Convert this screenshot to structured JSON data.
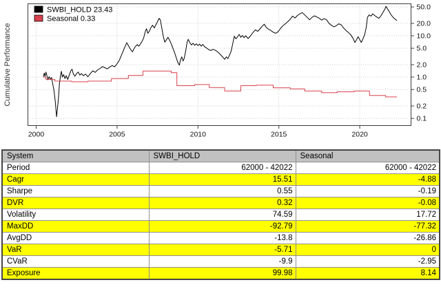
{
  "chart_data": {
    "type": "line",
    "title": "",
    "ylabel": "Cumulative Performance",
    "y_scale": "log",
    "grid": "dotted",
    "legend_position": "topleft",
    "xlim": [
      1999.49,
      2023.17
    ],
    "ylim": [
      0.067,
      59.6
    ],
    "x_ticks": [
      2000,
      2005,
      2010,
      2015,
      2020
    ],
    "x_tick_labels": [
      "2000",
      "2005",
      "2010",
      "2015",
      "2020"
    ],
    "y_ticks": [
      50,
      20,
      10,
      5,
      2,
      1,
      0.5,
      0.2,
      0.1
    ],
    "y_tick_labels": [
      "50.0",
      "20.0",
      "10.0",
      "5.0",
      "2.0",
      "1.0",
      "0.5",
      "0.2",
      "0.1"
    ],
    "series": [
      {
        "name": "SWBI_HOLD",
        "final_value": "23.43",
        "legend_label": "SWBI_HOLD 23.43",
        "color": "#000000",
        "points": [
          [
            2000.45,
            1.0
          ],
          [
            2000.5,
            1.25
          ],
          [
            2000.55,
            1.05
          ],
          [
            2000.6,
            1.32
          ],
          [
            2000.66,
            1.1
          ],
          [
            2000.72,
            0.86
          ],
          [
            2000.8,
            1.02
          ],
          [
            2000.88,
            0.88
          ],
          [
            2000.95,
            0.98
          ],
          [
            2001.02,
            0.7
          ],
          [
            2001.1,
            0.48
          ],
          [
            2001.18,
            0.26
          ],
          [
            2001.26,
            0.11
          ],
          [
            2001.32,
            0.18
          ],
          [
            2001.38,
            0.32
          ],
          [
            2001.44,
            0.7
          ],
          [
            2001.5,
            1.05
          ],
          [
            2001.56,
            1.38
          ],
          [
            2001.62,
            1.0
          ],
          [
            2001.7,
            1.15
          ],
          [
            2001.78,
            0.92
          ],
          [
            2001.86,
            1.08
          ],
          [
            2001.95,
            0.88
          ],
          [
            2002.05,
            1.12
          ],
          [
            2002.15,
            1.45
          ],
          [
            2002.22,
            1.55
          ],
          [
            2002.3,
            1.18
          ],
          [
            2002.4,
            1.05
          ],
          [
            2002.5,
            1.22
          ],
          [
            2002.6,
            1.32
          ],
          [
            2002.7,
            1.12
          ],
          [
            2002.8,
            1.22
          ],
          [
            2002.92,
            1.08
          ],
          [
            2003.05,
            1.18
          ],
          [
            2003.2,
            1.02
          ],
          [
            2003.35,
            1.22
          ],
          [
            2003.5,
            1.42
          ],
          [
            2003.65,
            1.3
          ],
          [
            2003.8,
            1.5
          ],
          [
            2003.95,
            1.62
          ],
          [
            2004.1,
            1.8
          ],
          [
            2004.25,
            1.68
          ],
          [
            2004.4,
            1.58
          ],
          [
            2004.55,
            1.76
          ],
          [
            2004.7,
            1.9
          ],
          [
            2004.85,
            1.78
          ],
          [
            2005.0,
            2.1
          ],
          [
            2005.15,
            2.6
          ],
          [
            2005.3,
            3.6
          ],
          [
            2005.45,
            5.0
          ],
          [
            2005.6,
            6.8
          ],
          [
            2005.72,
            5.6
          ],
          [
            2005.85,
            4.6
          ],
          [
            2005.95,
            4.1
          ],
          [
            2006.05,
            4.9
          ],
          [
            2006.15,
            5.6
          ],
          [
            2006.25,
            6.1
          ],
          [
            2006.35,
            5.6
          ],
          [
            2006.45,
            6.4
          ],
          [
            2006.55,
            7.4
          ],
          [
            2006.65,
            9.0
          ],
          [
            2006.75,
            13.0
          ],
          [
            2006.82,
            14.8
          ],
          [
            2006.9,
            11.5
          ],
          [
            2007.0,
            13.0
          ],
          [
            2007.1,
            16.0
          ],
          [
            2007.2,
            18.0
          ],
          [
            2007.3,
            15.5
          ],
          [
            2007.4,
            18.5
          ],
          [
            2007.5,
            22.0
          ],
          [
            2007.6,
            26.5
          ],
          [
            2007.68,
            24.0
          ],
          [
            2007.75,
            17.0
          ],
          [
            2007.85,
            10.0
          ],
          [
            2007.95,
            7.0
          ],
          [
            2008.05,
            8.0
          ],
          [
            2008.15,
            9.2
          ],
          [
            2008.25,
            7.8
          ],
          [
            2008.35,
            6.4
          ],
          [
            2008.45,
            5.0
          ],
          [
            2008.55,
            4.0
          ],
          [
            2008.65,
            3.0
          ],
          [
            2008.75,
            2.3
          ],
          [
            2008.85,
            1.95
          ],
          [
            2008.92,
            2.6
          ],
          [
            2009.0,
            3.1
          ],
          [
            2009.08,
            2.45
          ],
          [
            2009.16,
            2.9
          ],
          [
            2009.25,
            4.5
          ],
          [
            2009.33,
            7.0
          ],
          [
            2009.4,
            8.2
          ],
          [
            2009.5,
            6.8
          ],
          [
            2009.6,
            6.0
          ],
          [
            2009.7,
            6.6
          ],
          [
            2009.8,
            5.9
          ],
          [
            2009.9,
            6.4
          ],
          [
            2010.0,
            5.8
          ],
          [
            2010.1,
            6.3
          ],
          [
            2010.2,
            5.6
          ],
          [
            2010.3,
            6.2
          ],
          [
            2010.42,
            5.4
          ],
          [
            2010.55,
            5.0
          ],
          [
            2010.68,
            4.6
          ],
          [
            2010.8,
            4.4
          ],
          [
            2010.92,
            4.7
          ],
          [
            2011.05,
            4.5
          ],
          [
            2011.18,
            4.2
          ],
          [
            2011.3,
            3.8
          ],
          [
            2011.42,
            3.4
          ],
          [
            2011.55,
            3.0
          ],
          [
            2011.65,
            2.7
          ],
          [
            2011.75,
            3.1
          ],
          [
            2011.85,
            2.8
          ],
          [
            2011.95,
            3.4
          ],
          [
            2012.05,
            4.2
          ],
          [
            2012.15,
            6.5
          ],
          [
            2012.25,
            9.8
          ],
          [
            2012.35,
            8.5
          ],
          [
            2012.45,
            9.5
          ],
          [
            2012.55,
            10.8
          ],
          [
            2012.65,
            9.2
          ],
          [
            2012.75,
            10.2
          ],
          [
            2012.85,
            9.0
          ],
          [
            2012.95,
            10.0
          ],
          [
            2013.1,
            8.6
          ],
          [
            2013.25,
            10.0
          ],
          [
            2013.4,
            12.0
          ],
          [
            2013.55,
            14.0
          ],
          [
            2013.7,
            12.8
          ],
          [
            2013.85,
            15.0
          ],
          [
            2014.0,
            17.5
          ],
          [
            2014.1,
            19.0
          ],
          [
            2014.22,
            16.0
          ],
          [
            2014.35,
            14.5
          ],
          [
            2014.5,
            13.5
          ],
          [
            2014.65,
            12.2
          ],
          [
            2014.8,
            11.5
          ],
          [
            2014.95,
            12.5
          ],
          [
            2015.1,
            15.0
          ],
          [
            2015.25,
            17.5
          ],
          [
            2015.4,
            19.5
          ],
          [
            2015.55,
            22.0
          ],
          [
            2015.7,
            25.0
          ],
          [
            2015.85,
            30.0
          ],
          [
            2016.0,
            27.0
          ],
          [
            2016.15,
            31.0
          ],
          [
            2016.3,
            34.0
          ],
          [
            2016.45,
            36.5
          ],
          [
            2016.6,
            32.0
          ],
          [
            2016.75,
            28.0
          ],
          [
            2016.9,
            24.5
          ],
          [
            2017.05,
            28.0
          ],
          [
            2017.2,
            30.5
          ],
          [
            2017.35,
            28.5
          ],
          [
            2017.5,
            26.5
          ],
          [
            2017.65,
            24.0
          ],
          [
            2017.8,
            26.0
          ],
          [
            2017.95,
            24.5
          ],
          [
            2018.1,
            20.0
          ],
          [
            2018.25,
            18.0
          ],
          [
            2018.4,
            16.5
          ],
          [
            2018.55,
            17.5
          ],
          [
            2018.7,
            19.5
          ],
          [
            2018.85,
            18.5
          ],
          [
            2019.0,
            15.5
          ],
          [
            2019.15,
            13.5
          ],
          [
            2019.3,
            12.0
          ],
          [
            2019.45,
            10.5
          ],
          [
            2019.6,
            8.5
          ],
          [
            2019.7,
            6.9
          ],
          [
            2019.8,
            8.0
          ],
          [
            2019.9,
            9.5
          ],
          [
            2020.0,
            8.0
          ],
          [
            2020.1,
            6.9
          ],
          [
            2020.2,
            8.5
          ],
          [
            2020.3,
            10.5
          ],
          [
            2020.4,
            16.0
          ],
          [
            2020.48,
            28.0
          ],
          [
            2020.58,
            32.0
          ],
          [
            2020.7,
            30.0
          ],
          [
            2020.8,
            34.0
          ],
          [
            2020.92,
            31.0
          ],
          [
            2021.05,
            28.5
          ],
          [
            2021.18,
            26.5
          ],
          [
            2021.3,
            30.0
          ],
          [
            2021.42,
            36.0
          ],
          [
            2021.55,
            44.0
          ],
          [
            2021.62,
            52.0
          ],
          [
            2021.7,
            46.0
          ],
          [
            2021.8,
            40.0
          ],
          [
            2021.9,
            34.0
          ],
          [
            2022.0,
            30.0
          ],
          [
            2022.1,
            27.0
          ],
          [
            2022.2,
            25.0
          ],
          [
            2022.3,
            23.43
          ]
        ]
      },
      {
        "name": "Seasonal",
        "final_value": "0.33",
        "legend_label": "Seasonal  0.33",
        "color": "#d9414e",
        "points": [
          [
            2000.45,
            1.0
          ],
          [
            2000.6,
            1.0
          ],
          [
            2000.6,
            0.88
          ],
          [
            2001.15,
            0.88
          ],
          [
            2001.15,
            0.8
          ],
          [
            2002.2,
            0.8
          ],
          [
            2002.2,
            0.77
          ],
          [
            2003.2,
            0.77
          ],
          [
            2003.2,
            0.8
          ],
          [
            2004.65,
            0.8
          ],
          [
            2004.65,
            0.92
          ],
          [
            2005.7,
            0.92
          ],
          [
            2005.7,
            1.1
          ],
          [
            2006.6,
            1.1
          ],
          [
            2006.6,
            1.4
          ],
          [
            2008.35,
            1.4
          ],
          [
            2008.35,
            1.28
          ],
          [
            2008.7,
            1.28
          ],
          [
            2008.7,
            0.62
          ],
          [
            2009.8,
            0.62
          ],
          [
            2009.8,
            0.66
          ],
          [
            2010.7,
            0.66
          ],
          [
            2010.7,
            0.56
          ],
          [
            2011.65,
            0.56
          ],
          [
            2011.65,
            0.46
          ],
          [
            2012.65,
            0.46
          ],
          [
            2012.65,
            0.62
          ],
          [
            2013.6,
            0.62
          ],
          [
            2013.6,
            0.64
          ],
          [
            2014.65,
            0.64
          ],
          [
            2014.65,
            0.55
          ],
          [
            2015.7,
            0.55
          ],
          [
            2015.7,
            0.52
          ],
          [
            2016.6,
            0.52
          ],
          [
            2016.6,
            0.46
          ],
          [
            2017.65,
            0.46
          ],
          [
            2017.65,
            0.42
          ],
          [
            2018.6,
            0.42
          ],
          [
            2018.6,
            0.44
          ],
          [
            2019.65,
            0.44
          ],
          [
            2019.65,
            0.46
          ],
          [
            2020.6,
            0.46
          ],
          [
            2020.6,
            0.36
          ],
          [
            2021.6,
            0.36
          ],
          [
            2021.6,
            0.33
          ],
          [
            2022.3,
            0.33
          ]
        ]
      }
    ]
  },
  "table": {
    "headers": [
      "System",
      "SWBI_HOLD",
      "Seasonal"
    ],
    "header_bg": "#c1c1c1",
    "highlight_color": "#ffff00",
    "rows": [
      {
        "label": "Period",
        "swbi": "62000 - 42022",
        "seasonal": "62000 - 42022",
        "highlight": false
      },
      {
        "label": "Cagr",
        "swbi": "15.51",
        "seasonal": "-4.88",
        "highlight": true
      },
      {
        "label": "Sharpe",
        "swbi": "0.55",
        "seasonal": "-0.19",
        "highlight": false
      },
      {
        "label": "DVR",
        "swbi": "0.32",
        "seasonal": "-0.08",
        "highlight": true
      },
      {
        "label": "Volatility",
        "swbi": "74.59",
        "seasonal": "17.72",
        "highlight": false
      },
      {
        "label": "MaxDD",
        "swbi": "-92.79",
        "seasonal": "-77.32",
        "highlight": true
      },
      {
        "label": "AvgDD",
        "swbi": "-13.8",
        "seasonal": "-26.86",
        "highlight": false
      },
      {
        "label": "VaR",
        "swbi": "-5.71",
        "seasonal": "0",
        "highlight": true
      },
      {
        "label": "CVaR",
        "swbi": "-9.9",
        "seasonal": "-2.95",
        "highlight": false
      },
      {
        "label": "Exposure",
        "swbi": "99.98",
        "seasonal": "8.14",
        "highlight": true
      }
    ]
  }
}
